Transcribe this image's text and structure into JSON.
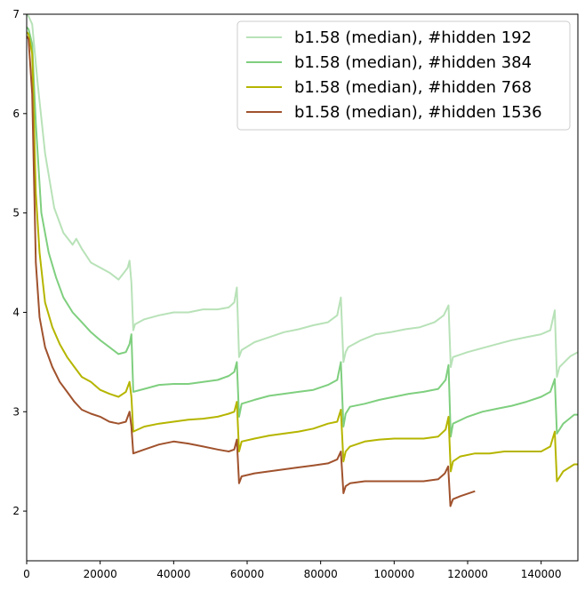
{
  "chart_data": {
    "type": "line",
    "title": "",
    "xlabel": "",
    "ylabel": "",
    "xlim": [
      0,
      150000
    ],
    "ylim": [
      1.5,
      7
    ],
    "xticks": [
      0,
      20000,
      40000,
      60000,
      80000,
      100000,
      120000,
      140000
    ],
    "xtick_labels": [
      "0",
      "20000",
      "40000",
      "60000",
      "80000",
      "100000",
      "120000",
      "140000"
    ],
    "yticks": [
      2,
      3,
      4,
      5,
      6,
      7
    ],
    "ytick_labels": [
      "2",
      "3",
      "4",
      "5",
      "6",
      "7"
    ],
    "grid": false,
    "legend_position": "top-right",
    "series": [
      {
        "name": "b1.58 (median), #hidden 192",
        "color": "#b8e2b8",
        "x": [
          0,
          500,
          1500,
          3000,
          5000,
          7500,
          10000,
          12500,
          13500,
          15000,
          17500,
          20000,
          22500,
          25000,
          26500,
          27500,
          28000,
          28500,
          29000,
          29500,
          32000,
          36000,
          40000,
          44000,
          48000,
          52000,
          55000,
          56500,
          57200,
          57800,
          58500,
          62000,
          66000,
          70000,
          74000,
          78000,
          82000,
          84500,
          85500,
          86200,
          86800,
          87500,
          91000,
          95000,
          99000,
          103000,
          107000,
          111000,
          113500,
          114800,
          115400,
          116000,
          120000,
          124000,
          128000,
          132000,
          136000,
          140000,
          142500,
          143700,
          144300,
          145000,
          148000,
          150000
        ],
        "y": [
          7.0,
          6.98,
          6.9,
          6.3,
          5.6,
          5.05,
          4.8,
          4.68,
          4.74,
          4.64,
          4.5,
          4.45,
          4.4,
          4.33,
          4.4,
          4.45,
          4.52,
          4.3,
          3.82,
          3.88,
          3.93,
          3.97,
          4.0,
          4.0,
          4.03,
          4.03,
          4.05,
          4.1,
          4.25,
          3.55,
          3.62,
          3.7,
          3.75,
          3.8,
          3.83,
          3.87,
          3.9,
          3.97,
          4.15,
          3.5,
          3.6,
          3.65,
          3.72,
          3.78,
          3.8,
          3.83,
          3.85,
          3.9,
          3.97,
          4.07,
          3.45,
          3.55,
          3.6,
          3.64,
          3.68,
          3.72,
          3.75,
          3.78,
          3.82,
          4.02,
          3.35,
          3.45,
          3.56,
          3.6
        ]
      },
      {
        "name": "b1.58 (median), #hidden 384",
        "color": "#7fcf7f",
        "x": [
          0,
          500,
          1500,
          2500,
          4000,
          6000,
          8000,
          10000,
          12500,
          15000,
          17500,
          20000,
          22500,
          25000,
          27000,
          28000,
          28500,
          29000,
          32000,
          36000,
          40000,
          44000,
          48000,
          52000,
          55000,
          56500,
          57200,
          57800,
          58500,
          62000,
          66000,
          70000,
          74000,
          78000,
          82000,
          84500,
          85500,
          86200,
          86800,
          88000,
          92000,
          96000,
          100000,
          104000,
          108000,
          112000,
          114000,
          114800,
          115400,
          116000,
          120000,
          124000,
          128000,
          132000,
          136000,
          140000,
          142500,
          143700,
          144300,
          146000,
          149000,
          150000
        ],
        "y": [
          6.87,
          6.85,
          6.7,
          5.9,
          5.0,
          4.6,
          4.35,
          4.15,
          4.0,
          3.9,
          3.8,
          3.72,
          3.65,
          3.58,
          3.6,
          3.68,
          3.78,
          3.2,
          3.23,
          3.27,
          3.28,
          3.28,
          3.3,
          3.32,
          3.36,
          3.4,
          3.5,
          2.95,
          3.08,
          3.12,
          3.16,
          3.18,
          3.2,
          3.22,
          3.27,
          3.32,
          3.5,
          2.85,
          2.98,
          3.05,
          3.08,
          3.12,
          3.15,
          3.18,
          3.2,
          3.23,
          3.32,
          3.47,
          2.75,
          2.88,
          2.95,
          3.0,
          3.03,
          3.06,
          3.1,
          3.15,
          3.2,
          3.33,
          2.78,
          2.88,
          2.97,
          2.97
        ]
      },
      {
        "name": "b1.58 (median), #hidden 768",
        "color": "#b5b500",
        "x": [
          0,
          500,
          1500,
          2500,
          3500,
          5000,
          7000,
          9000,
          11000,
          13000,
          15000,
          17500,
          20000,
          22500,
          25000,
          27000,
          28000,
          28500,
          29000,
          32000,
          36000,
          40000,
          44000,
          48000,
          52000,
          55000,
          56500,
          57200,
          57800,
          58500,
          62000,
          66000,
          70000,
          74000,
          78000,
          82000,
          84500,
          85500,
          86200,
          86800,
          88000,
          92000,
          96000,
          100000,
          104000,
          108000,
          112000,
          114000,
          114800,
          115400,
          116000,
          118000,
          122000,
          126000,
          130000,
          134000,
          138000,
          140000,
          142500,
          143700,
          144300,
          146000,
          149000,
          150000
        ],
        "y": [
          6.82,
          6.8,
          6.6,
          5.2,
          4.6,
          4.1,
          3.85,
          3.68,
          3.55,
          3.45,
          3.35,
          3.3,
          3.22,
          3.18,
          3.15,
          3.2,
          3.3,
          3.15,
          2.8,
          2.85,
          2.88,
          2.9,
          2.92,
          2.93,
          2.95,
          2.98,
          3.0,
          3.1,
          2.6,
          2.7,
          2.73,
          2.76,
          2.78,
          2.8,
          2.83,
          2.88,
          2.9,
          3.02,
          2.5,
          2.6,
          2.65,
          2.7,
          2.72,
          2.73,
          2.73,
          2.73,
          2.75,
          2.82,
          2.95,
          2.4,
          2.5,
          2.55,
          2.58,
          2.58,
          2.6,
          2.6,
          2.6,
          2.6,
          2.65,
          2.8,
          2.3,
          2.4,
          2.47,
          2.47
        ]
      },
      {
        "name": "b1.58 (median), #hidden 1536",
        "color": "#a0522d",
        "x": [
          0,
          500,
          1500,
          2500,
          3500,
          5000,
          7000,
          9000,
          11000,
          13000,
          15000,
          17500,
          20000,
          22500,
          25000,
          27000,
          28000,
          28500,
          29000,
          32000,
          36000,
          40000,
          44000,
          48000,
          52000,
          55000,
          56500,
          57200,
          57800,
          58500,
          62000,
          66000,
          70000,
          74000,
          78000,
          82000,
          84500,
          85500,
          86200,
          86800,
          88000,
          92000,
          96000,
          100000,
          104000,
          108000,
          112000,
          113800,
          114700,
          115300,
          116000,
          118000,
          122000
        ],
        "y": [
          6.78,
          6.75,
          6.2,
          4.5,
          3.95,
          3.65,
          3.45,
          3.3,
          3.2,
          3.1,
          3.02,
          2.98,
          2.95,
          2.9,
          2.88,
          2.9,
          3.0,
          2.85,
          2.58,
          2.62,
          2.67,
          2.7,
          2.68,
          2.65,
          2.62,
          2.6,
          2.62,
          2.72,
          2.28,
          2.35,
          2.38,
          2.4,
          2.42,
          2.44,
          2.46,
          2.48,
          2.52,
          2.6,
          2.18,
          2.25,
          2.28,
          2.3,
          2.3,
          2.3,
          2.3,
          2.3,
          2.32,
          2.38,
          2.45,
          2.05,
          2.12,
          2.15,
          2.2
        ]
      }
    ]
  }
}
